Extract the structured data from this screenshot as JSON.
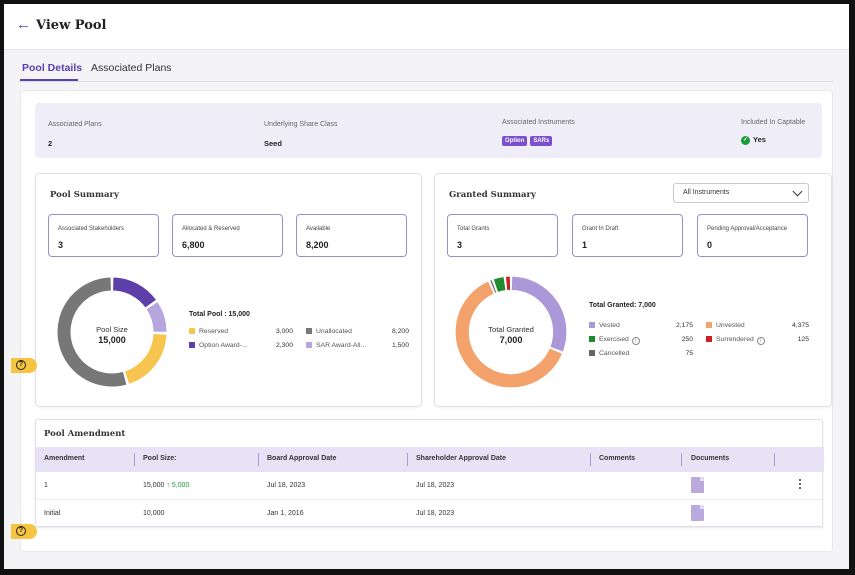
{
  "header": {
    "title": "View Pool",
    "back_icon": "arrow-left-icon"
  },
  "tabs": [
    {
      "label": "Pool Details",
      "active": true
    },
    {
      "label": "Associated Plans",
      "active": false
    }
  ],
  "info": {
    "associated_plans_label": "Associated Plans",
    "associated_plans_value": "2",
    "share_class_label": "Underlying Share Class",
    "share_class_value": "Seed",
    "instruments_label": "Associated Instruments",
    "instruments": [
      "Option",
      "SARs"
    ],
    "captable_label": "Included In Captable",
    "captable_value": "Yes"
  },
  "pool_summary": {
    "title": "Pool Summary",
    "stats": [
      {
        "label": "Associated Stakeholders",
        "value": "3"
      },
      {
        "label": "Allocated & Reserved",
        "value": "6,800"
      },
      {
        "label": "Available",
        "value": "8,200"
      }
    ],
    "center_label": "Pool Size",
    "center_value": "15,000",
    "total": "Total Pool : 15,000",
    "legend": [
      {
        "label": "Reserved",
        "value": "3,000",
        "color": "#f7c54f"
      },
      {
        "label": "Unallocated",
        "value": "8,200",
        "color": "#777777"
      },
      {
        "label": "Option Award-...",
        "value": "2,300",
        "color": "#5e3ea8"
      },
      {
        "label": "SAR Award-All...",
        "value": "1,500",
        "color": "#b7a6dd"
      }
    ],
    "segments": [
      {
        "name": "Option Award",
        "value": 2300,
        "color": "#5e3ea8"
      },
      {
        "name": "SAR Award",
        "value": 1500,
        "color": "#b7a6dd"
      },
      {
        "name": "Reserved",
        "value": 3000,
        "color": "#f7c54f"
      },
      {
        "name": "Unallocated",
        "value": 8200,
        "color": "#777777"
      }
    ]
  },
  "granted_summary": {
    "title": "Granted Summary",
    "filter_value": "All Instruments",
    "stats": [
      {
        "label": "Total Grants",
        "value": "3"
      },
      {
        "label": "Grant In Draft",
        "value": "1"
      },
      {
        "label": "Pending Approval/Acceptance",
        "value": "0"
      }
    ],
    "center_label": "Total Granted",
    "center_value": "7,000",
    "total": "Total Granted: 7,000",
    "legend": [
      {
        "label": "Vested",
        "value": "2,175",
        "color": "#ab98d8"
      },
      {
        "label": "Unvested",
        "value": "4,375",
        "color": "#f4a26b"
      },
      {
        "label": "Exercised",
        "value": "250",
        "color": "#1f8a2e",
        "info": true
      },
      {
        "label": "Surrendered",
        "value": "125",
        "color": "#cc1f1f",
        "info": true
      },
      {
        "label": "Cancelled",
        "value": "75",
        "color": "#666666"
      }
    ],
    "segments": [
      {
        "name": "Vested",
        "value": 2175,
        "color": "#ab98d8"
      },
      {
        "name": "Unvested",
        "value": 4375,
        "color": "#f4a26b"
      },
      {
        "name": "Cancelled",
        "value": 75,
        "color": "#666666"
      },
      {
        "name": "Exercised",
        "value": 250,
        "color": "#1f8a2e"
      },
      {
        "name": "Surrendered",
        "value": 125,
        "color": "#cc1f1f"
      }
    ]
  },
  "amendment": {
    "title": "Pool Amendment",
    "columns": [
      "Amendment",
      "Pool Size:",
      "Board Approval Date",
      "Shareholder Approval Date",
      "Comments",
      "Documents"
    ],
    "rows": [
      {
        "amendment": "1",
        "pool_size": "15,000",
        "delta": "↑ 5,000",
        "board_date": "Jul 18, 2023",
        "shareholder_date": "Jul 18, 2023",
        "comments": ""
      },
      {
        "amendment": "Initial",
        "pool_size": "10,000",
        "delta": "",
        "board_date": "Jan 1, 2016",
        "shareholder_date": "Jul 18, 2023",
        "comments": ""
      }
    ]
  },
  "help_icon": "question-circle-icon"
}
